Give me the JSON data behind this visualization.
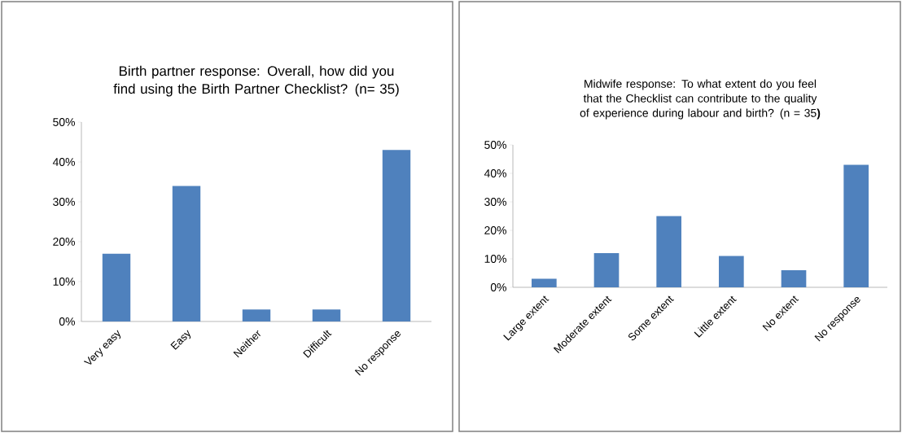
{
  "chart_data": [
    {
      "type": "bar",
      "title": "Birth partner response: Overall, how did you find using the Birth Partner Checklist?  (n= 35)",
      "categories": [
        "Very easy",
        "Easy",
        "Neither",
        "Difficult",
        "No response"
      ],
      "values": [
        17,
        34,
        3,
        3,
        43
      ],
      "color": "#4f81bd",
      "ylim": [
        0,
        50
      ],
      "yticks": [
        {
          "value": 0,
          "label": "0%"
        },
        {
          "value": 10,
          "label": "10%"
        },
        {
          "value": 20,
          "label": "20%"
        },
        {
          "value": 30,
          "label": "30%"
        },
        {
          "value": 40,
          "label": "40%"
        },
        {
          "value": 50,
          "label": "50%"
        }
      ]
    },
    {
      "type": "bar",
      "title": "Midwife response: To what extent do you feel that the Checklist can contribute to the quality of experience during labour and birth?  (n = 35**)**",
      "categories": [
        "Large extent",
        "Moderate extent",
        "Some extent",
        "Little extent",
        "No extent",
        "No response"
      ],
      "values": [
        3,
        12,
        25,
        11,
        6,
        43
      ],
      "color": "#4f81bd",
      "ylim": [
        0,
        50
      ],
      "yticks": [
        {
          "value": 0,
          "label": "0%"
        },
        {
          "value": 10,
          "label": "10%"
        },
        {
          "value": 20,
          "label": "20%"
        },
        {
          "value": 30,
          "label": "30%"
        },
        {
          "value": 40,
          "label": "40%"
        },
        {
          "value": 50,
          "label": "50%"
        }
      ]
    }
  ]
}
